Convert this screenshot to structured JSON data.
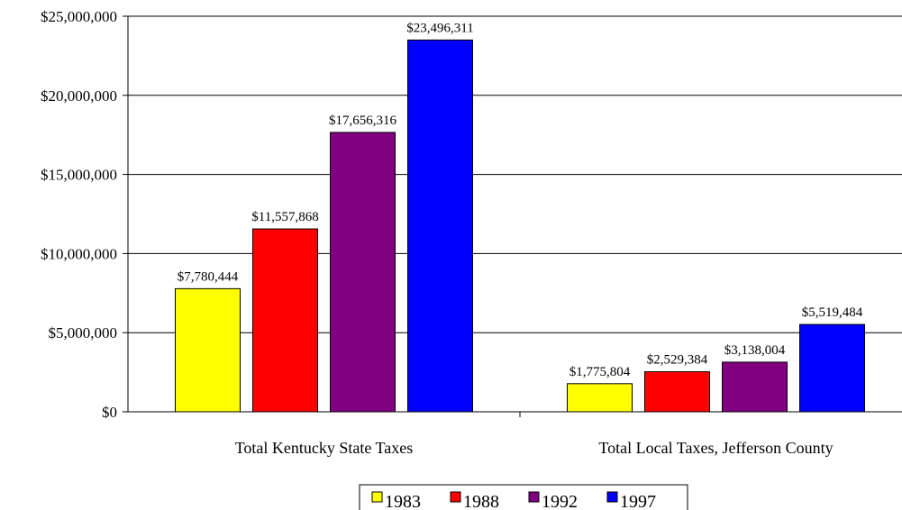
{
  "chart_data": {
    "type": "bar",
    "categories": [
      "Total Kentucky State Taxes",
      "Total Local Taxes, Jefferson County"
    ],
    "series": [
      {
        "name": "1983",
        "values": [
          7780444,
          1775804
        ],
        "labels": [
          "$7,780,444",
          "$1,775,804"
        ],
        "color": "#ffff00"
      },
      {
        "name": "1988",
        "values": [
          11557868,
          2529384
        ],
        "labels": [
          "$11,557,868",
          "$2,529,384"
        ],
        "color": "#ff0000"
      },
      {
        "name": "1992",
        "values": [
          17656316,
          3138004
        ],
        "labels": [
          "$17,656,316",
          "$3,138,004"
        ],
        "color": "#800080"
      },
      {
        "name": "1997",
        "values": [
          23496311,
          5519484
        ],
        "labels": [
          "$23,496,311",
          "$5,519,484"
        ],
        "color": "#0000ff"
      }
    ],
    "ylim": [
      0,
      25000000
    ],
    "yticks": [
      0,
      5000000,
      10000000,
      15000000,
      20000000,
      25000000
    ],
    "ytick_labels": [
      "$0",
      "$5,000,000",
      "$10,000,000",
      "$15,000,000",
      "$20,000,000",
      "$25,000,000"
    ],
    "grid": "horizontal",
    "legend_position": "bottom",
    "title": "",
    "xlabel": "",
    "ylabel": ""
  }
}
